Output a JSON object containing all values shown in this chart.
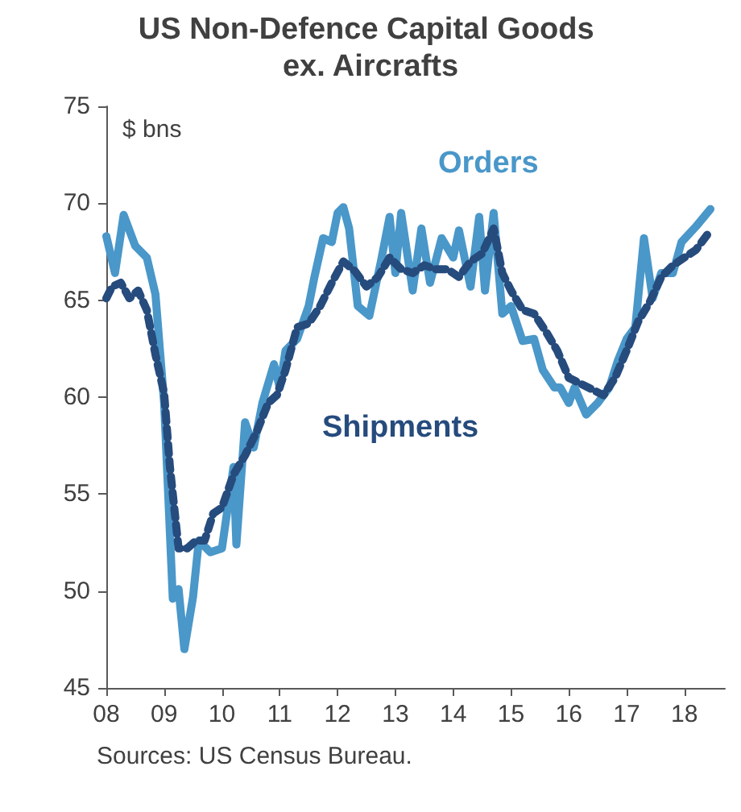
{
  "chart_data": {
    "type": "line",
    "title": "US Non-Defence Capital Goods ex. Aircrafts",
    "ylabel": "$ bns",
    "annotations": [
      "Sources: US Census Bureau."
    ],
    "xlim": [
      2008,
      2018.7
    ],
    "xticks": [
      {
        "value": 2008,
        "label": "08"
      },
      {
        "value": 2009,
        "label": "09"
      },
      {
        "value": 2010,
        "label": "10"
      },
      {
        "value": 2011,
        "label": "11"
      },
      {
        "value": 2012,
        "label": "12"
      },
      {
        "value": 2013,
        "label": "13"
      },
      {
        "value": 2014,
        "label": "14"
      },
      {
        "value": 2015,
        "label": "15"
      },
      {
        "value": 2016,
        "label": "16"
      },
      {
        "value": 2017,
        "label": "17"
      },
      {
        "value": 2018,
        "label": "18"
      }
    ],
    "ylim": [
      45,
      75
    ],
    "yticks": [
      45,
      50,
      55,
      60,
      65,
      70,
      75
    ],
    "grid": false,
    "legend": false,
    "marker": "none",
    "series": [
      {
        "name": "Orders",
        "color": "#4a97c9",
        "line_style": "solid",
        "x": [
          2008,
          2008.15,
          2008.3,
          2008.5,
          2008.7,
          2008.85,
          2009,
          2009.1,
          2009.15,
          2009.25,
          2009.35,
          2009.5,
          2009.6,
          2009.8,
          2010,
          2010.2,
          2010.25,
          2010.4,
          2010.55,
          2010.7,
          2010.9,
          2011,
          2011.1,
          2011.3,
          2011.5,
          2011.6,
          2011.75,
          2011.9,
          2012,
          2012.1,
          2012.2,
          2012.35,
          2012.55,
          2012.75,
          2012.9,
          2013,
          2013.1,
          2013.3,
          2013.45,
          2013.6,
          2013.8,
          2014,
          2014.1,
          2014.3,
          2014.45,
          2014.55,
          2014.7,
          2014.85,
          2015,
          2015.2,
          2015.4,
          2015.55,
          2015.75,
          2015.85,
          2016,
          2016.1,
          2016.3,
          2016.5,
          2016.7,
          2016.85,
          2017,
          2017.15,
          2017.3,
          2017.45,
          2017.6,
          2017.8,
          2017.95,
          2018.2,
          2018.45
        ],
        "values": [
          68.3,
          66.4,
          69.4,
          67.8,
          67.2,
          65.3,
          59.7,
          53,
          49.6,
          50.1,
          47,
          49.7,
          52.6,
          52,
          52.2,
          56.4,
          52.4,
          58.7,
          57.4,
          59.7,
          61.7,
          60.5,
          62.4,
          63,
          64.7,
          66.2,
          68.2,
          68,
          69.5,
          69.8,
          68.7,
          64.7,
          64.2,
          67,
          69.3,
          66.4,
          69.5,
          65.5,
          68.7,
          65.9,
          68.2,
          67.2,
          68.6,
          65.7,
          69.3,
          65.5,
          69.5,
          64.3,
          64.7,
          62.9,
          63,
          61.4,
          60.5,
          60.5,
          59.7,
          60.5,
          59.1,
          59.7,
          60.5,
          61.9,
          63,
          63.6,
          68.2,
          65.1,
          66.4,
          66.4,
          68,
          68.8,
          69.7
        ]
      },
      {
        "name": "Shipments",
        "color": "#264b7d",
        "line_style": "dashed",
        "x": [
          2008,
          2008.1,
          2008.25,
          2008.4,
          2008.55,
          2008.7,
          2008.85,
          2009,
          2009.1,
          2009.25,
          2009.4,
          2009.55,
          2009.7,
          2009.85,
          2010,
          2010.2,
          2010.4,
          2010.6,
          2010.8,
          2010.95,
          2011.1,
          2011.3,
          2011.5,
          2011.7,
          2011.9,
          2012.1,
          2012.3,
          2012.5,
          2012.7,
          2012.9,
          2013.1,
          2013.3,
          2013.5,
          2013.7,
          2013.9,
          2014.1,
          2014.3,
          2014.5,
          2014.7,
          2014.85,
          2015,
          2015.2,
          2015.4,
          2015.6,
          2015.8,
          2016,
          2016.2,
          2016.4,
          2016.6,
          2016.8,
          2017,
          2017.2,
          2017.4,
          2017.6,
          2017.8,
          2018,
          2018.2,
          2018.45
        ],
        "values": [
          65.1,
          65.7,
          65.9,
          65.1,
          65.5,
          64.5,
          62.2,
          60.2,
          56.4,
          52.2,
          52.2,
          52.6,
          52.6,
          54,
          54.3,
          56,
          57,
          58.2,
          59.7,
          60.1,
          61.4,
          63.6,
          63.8,
          64.7,
          65.9,
          67,
          66.5,
          65.7,
          66.2,
          67.2,
          66.6,
          66.4,
          66.8,
          66.6,
          66.6,
          66.2,
          67,
          67.4,
          68.7,
          66.4,
          65.5,
          64.5,
          64.3,
          63.4,
          62.4,
          61,
          60.7,
          60.4,
          60.1,
          61,
          62.4,
          63.9,
          64.9,
          66.2,
          66.8,
          67.2,
          67.6,
          68.6
        ]
      }
    ]
  }
}
